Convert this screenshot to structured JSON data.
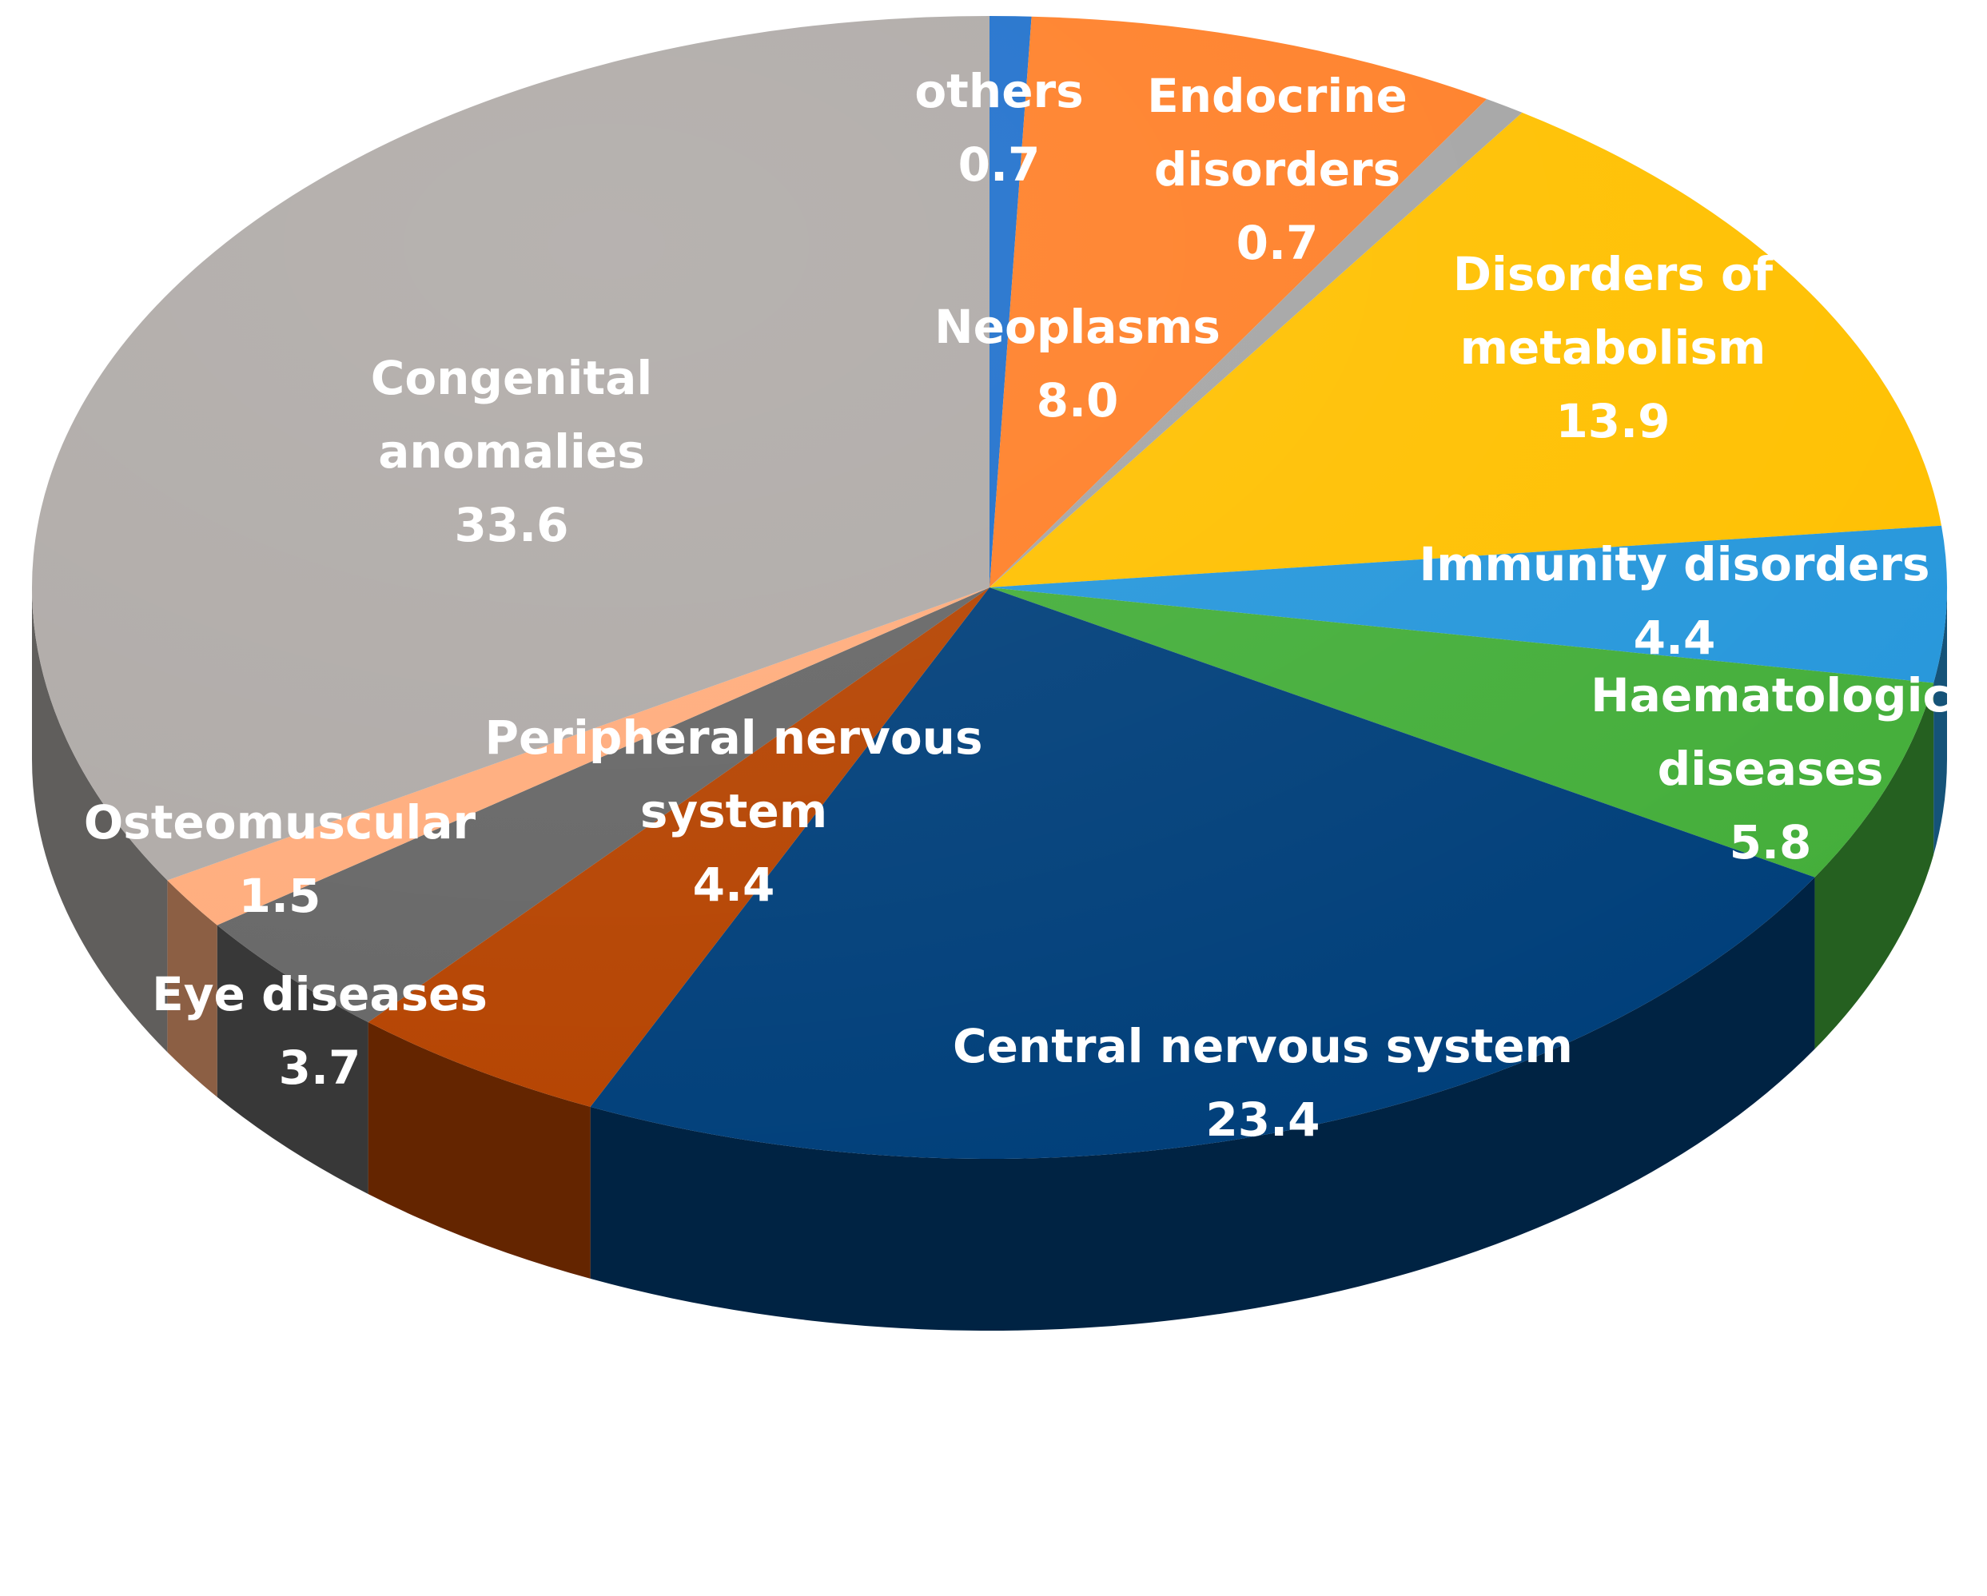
{
  "chart_data": {
    "type": "pie",
    "style": "3d",
    "slices": [
      {
        "lines": [
          "others",
          "0.7"
        ],
        "value": 0.7,
        "color": "#1F70CC"
      },
      {
        "lines": [
          "Neoplasms",
          "8.0"
        ],
        "value": 8.0,
        "color": "#FF7F27"
      },
      {
        "lines": [
          "Endocrine",
          "disorders",
          "0.7"
        ],
        "value": 0.7,
        "color": "#A5A5A5"
      },
      {
        "lines": [
          "Disorders of",
          "metabolism",
          "13.9"
        ],
        "value": 13.9,
        "color": "#FFC000"
      },
      {
        "lines": [
          "Immunity disorders",
          "4.4"
        ],
        "value": 4.4,
        "color": "#2697DB"
      },
      {
        "lines": [
          "Haematologic",
          "diseases",
          "5.8"
        ],
        "value": 5.8,
        "color": "#44AE3A"
      },
      {
        "lines": [
          "Central nervous system",
          "23.4"
        ],
        "value": 23.4,
        "color": "#003F7A"
      },
      {
        "lines": [
          "Peripheral nervous",
          "system",
          "4.4"
        ],
        "value": 4.4,
        "color": "#B54300"
      },
      {
        "lines": [
          "Eye diseases",
          "3.7"
        ],
        "value": 3.7,
        "color": "#666666"
      },
      {
        "lines": [
          "Osteomuscular",
          "1.5"
        ],
        "value": 1.5,
        "color": "#FFAC7C"
      },
      {
        "lines": [
          "Congenital",
          "anomalies",
          "33.6"
        ],
        "value": 33.6,
        "color": "#AFAAA7"
      }
    ]
  }
}
